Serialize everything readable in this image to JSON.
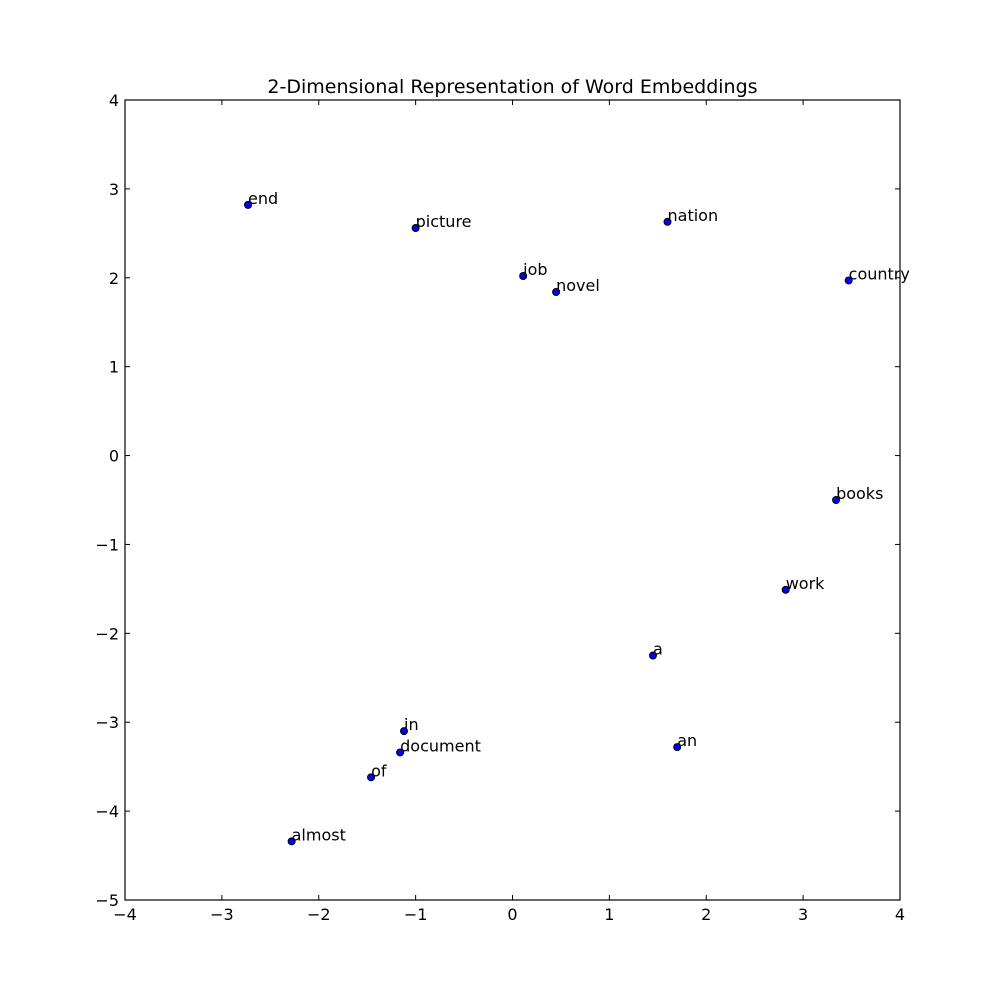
{
  "chart_data": {
    "type": "scatter",
    "title": "2-Dimensional Representation of Word Embeddings",
    "xlabel": "",
    "ylabel": "",
    "xlim": [
      -4,
      4
    ],
    "ylim": [
      -5,
      4
    ],
    "xticks": [
      -4,
      -3,
      -2,
      -1,
      0,
      1,
      2,
      3,
      4
    ],
    "yticks": [
      -5,
      -4,
      -3,
      -2,
      -1,
      0,
      1,
      2,
      3,
      4
    ],
    "xtick_labels": [
      "−4",
      "−3",
      "−2",
      "−1",
      "0",
      "1",
      "2",
      "3",
      "4"
    ],
    "ytick_labels": [
      "−5",
      "−4",
      "−3",
      "−2",
      "−1",
      "0",
      "1",
      "2",
      "3",
      "4"
    ],
    "grid": false,
    "marker_color": "#0000ff",
    "points": [
      {
        "label": "end",
        "x": -2.73,
        "y": 2.82
      },
      {
        "label": "picture",
        "x": -1.0,
        "y": 2.56
      },
      {
        "label": "nation",
        "x": 1.6,
        "y": 2.63
      },
      {
        "label": "job",
        "x": 0.11,
        "y": 2.02
      },
      {
        "label": "novel",
        "x": 0.45,
        "y": 1.84
      },
      {
        "label": "country",
        "x": 3.47,
        "y": 1.97
      },
      {
        "label": "books",
        "x": 3.34,
        "y": -0.5
      },
      {
        "label": "work",
        "x": 2.82,
        "y": -1.51
      },
      {
        "label": "a",
        "x": 1.45,
        "y": -2.25
      },
      {
        "label": "an",
        "x": 1.7,
        "y": -3.28
      },
      {
        "label": "in",
        "x": -1.12,
        "y": -3.1
      },
      {
        "label": "document",
        "x": -1.16,
        "y": -3.34
      },
      {
        "label": "of",
        "x": -1.46,
        "y": -3.62
      },
      {
        "label": "almost",
        "x": -2.28,
        "y": -4.34
      }
    ]
  }
}
